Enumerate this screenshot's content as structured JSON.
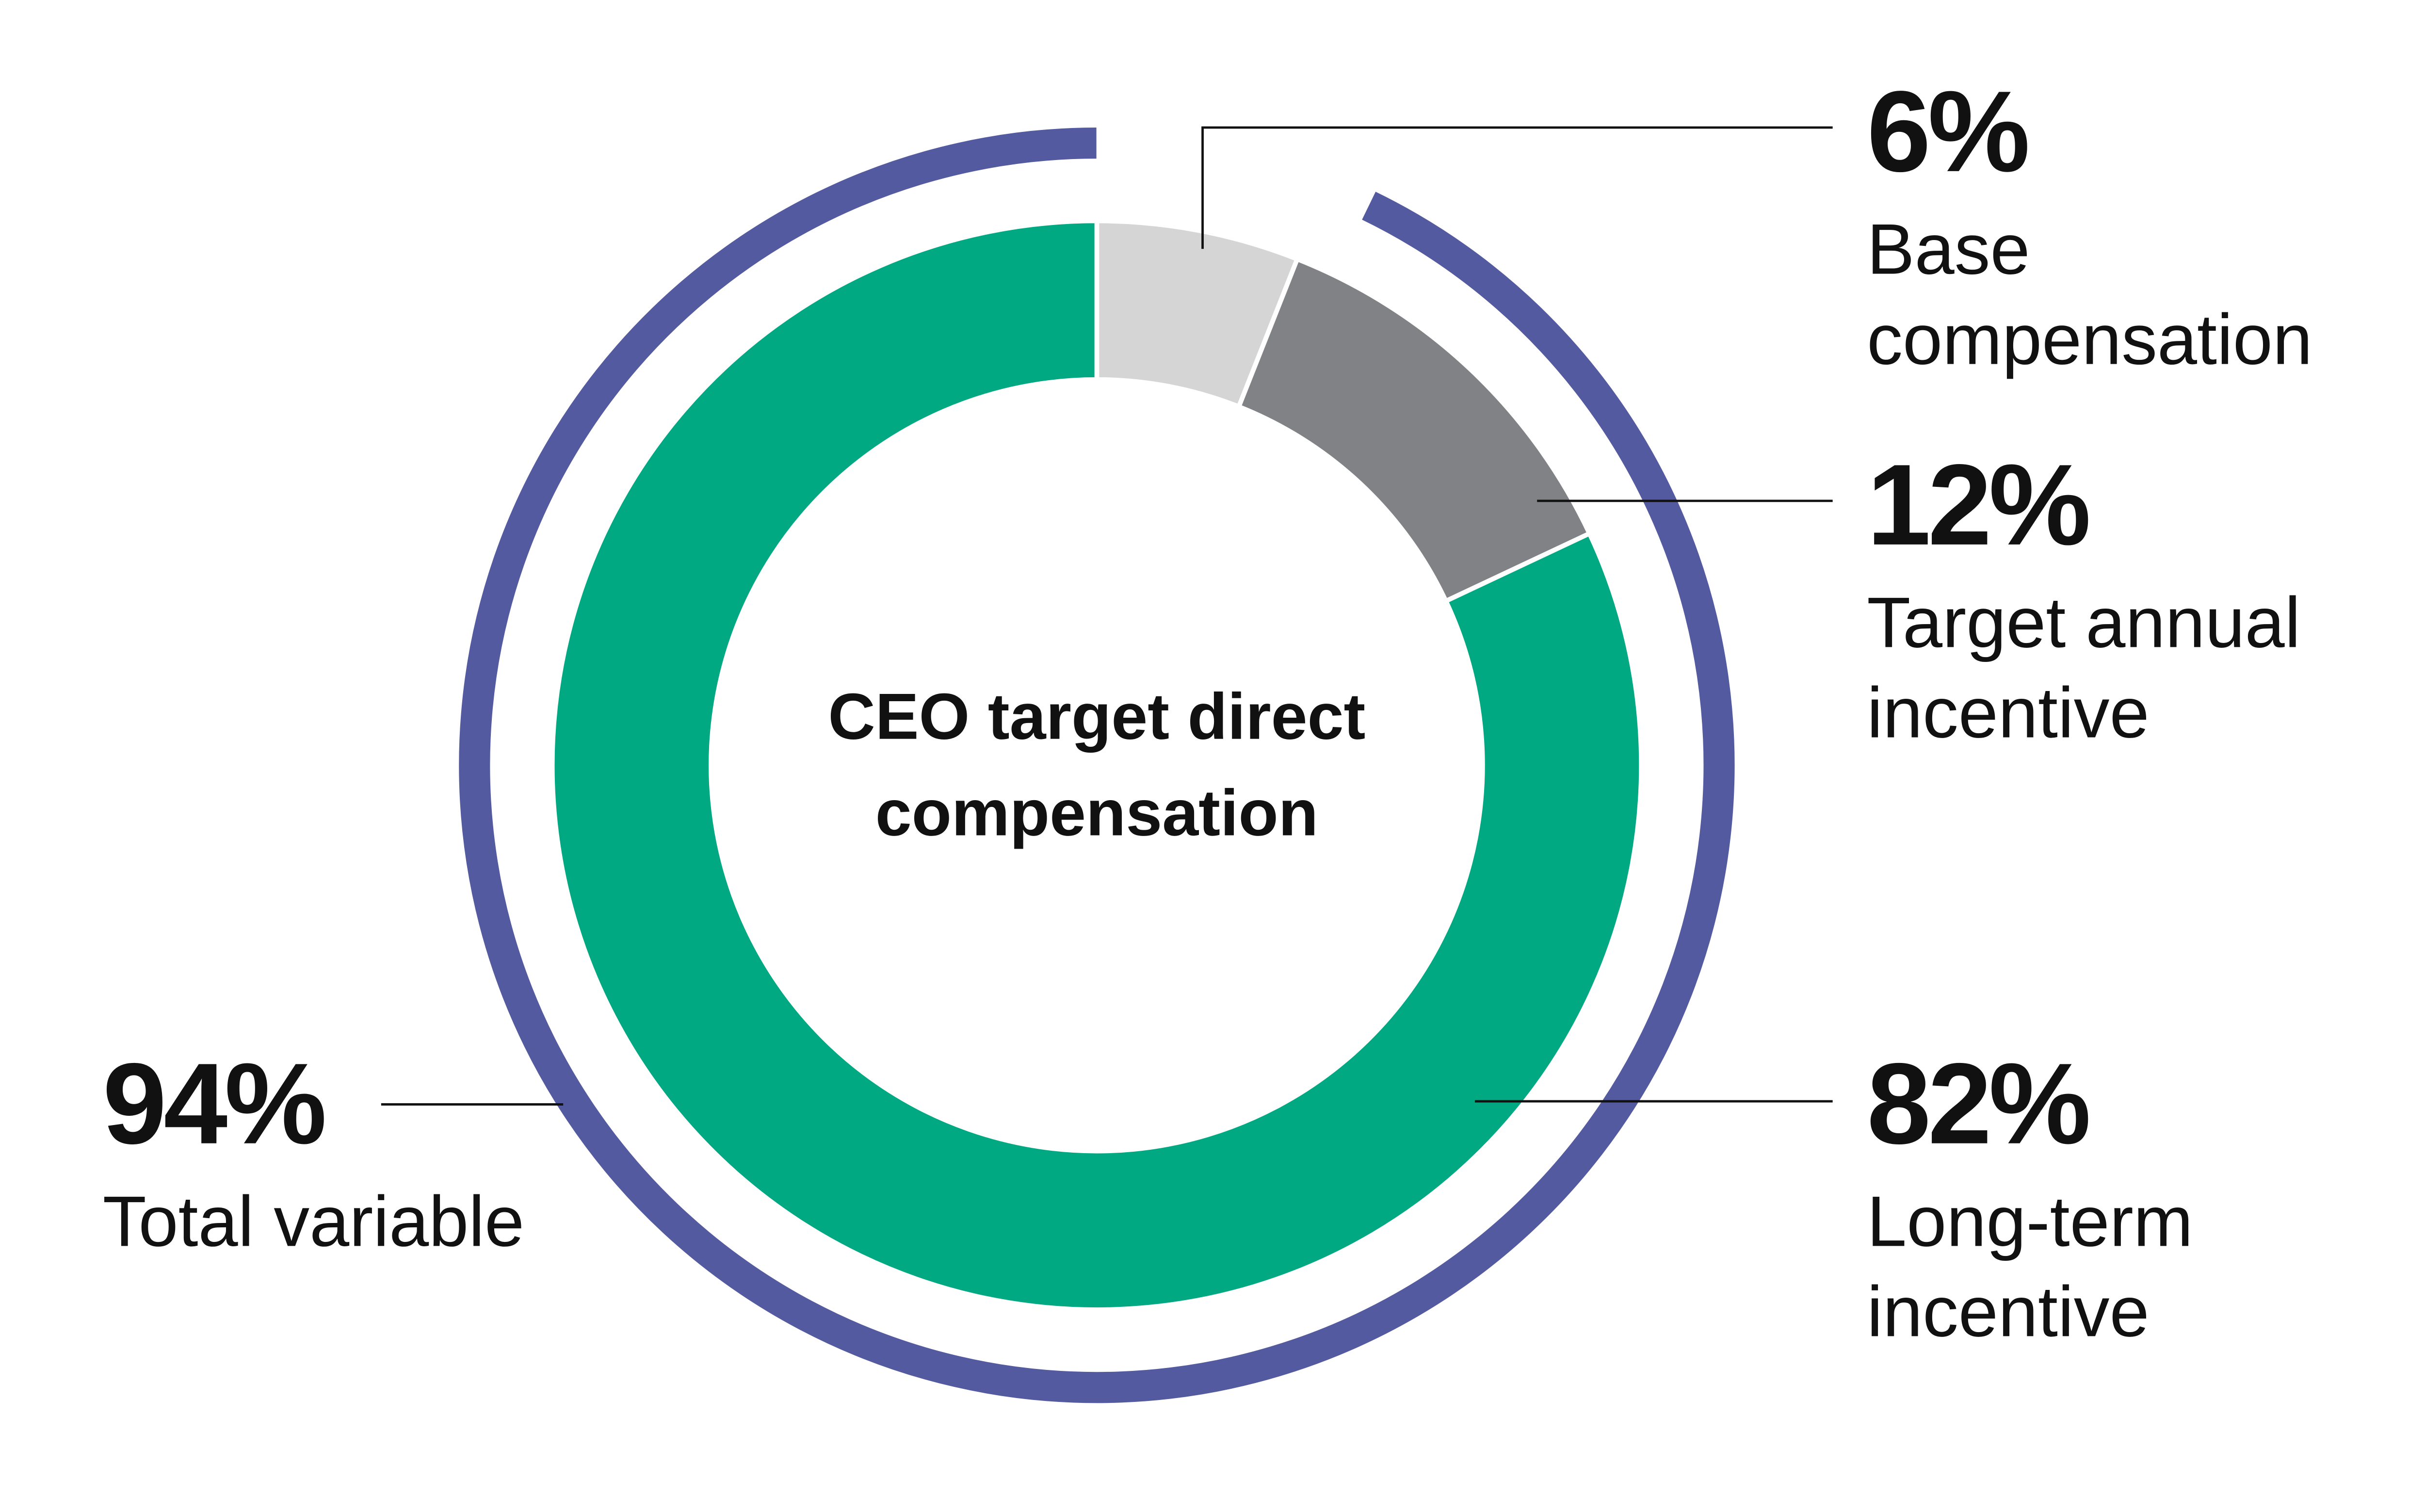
{
  "chart_data": {
    "type": "donut",
    "title": "CEO target direct compensation",
    "categories": [
      "Base compensation",
      "Target annual incentive",
      "Long-term incentive"
    ],
    "values": [
      6,
      12,
      82
    ],
    "value_labels": [
      "6%",
      "12%",
      "82%"
    ],
    "colors": [
      "#d5d5d5",
      "#818285",
      "#00a982"
    ],
    "total": {
      "name": "Total variable",
      "value": 94,
      "value_label": "94%",
      "color": "#535aa0"
    }
  }
}
